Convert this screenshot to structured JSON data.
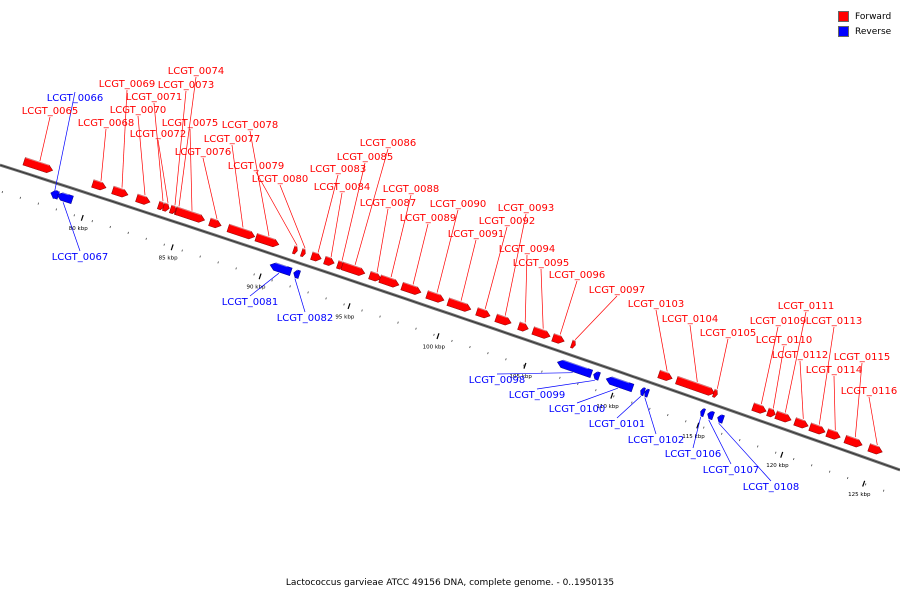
{
  "legend": {
    "forward_label": "Forward",
    "reverse_label": "Reverse",
    "forward_color": "#ff0000",
    "reverse_color": "#0000ff"
  },
  "caption": "Lactococcus garvieae ATCC 49156 DNA, complete genome. - 0..1950135",
  "ticks": [
    "80 kbp",
    "85 kbp",
    "90 kbp",
    "95 kbp",
    "100 kbp",
    "105 kbp",
    "110 kbp",
    "115 kbp",
    "120 kbp",
    "125 kbp"
  ],
  "genes": [
    {
      "name": "LCGT_0065",
      "strand": "forward"
    },
    {
      "name": "LCGT_0066",
      "strand": "reverse"
    },
    {
      "name": "LCGT_0067",
      "strand": "reverse"
    },
    {
      "name": "LCGT_0068",
      "strand": "forward"
    },
    {
      "name": "LCGT_0069",
      "strand": "forward"
    },
    {
      "name": "LCGT_0070",
      "strand": "forward"
    },
    {
      "name": "LCGT_0071",
      "strand": "forward"
    },
    {
      "name": "LCGT_0072",
      "strand": "forward"
    },
    {
      "name": "LCGT_0073",
      "strand": "forward"
    },
    {
      "name": "LCGT_0074",
      "strand": "forward"
    },
    {
      "name": "LCGT_0075",
      "strand": "forward"
    },
    {
      "name": "LCGT_0076",
      "strand": "forward"
    },
    {
      "name": "LCGT_0077",
      "strand": "forward"
    },
    {
      "name": "LCGT_0078",
      "strand": "forward"
    },
    {
      "name": "LCGT_0079",
      "strand": "forward"
    },
    {
      "name": "LCGT_0080",
      "strand": "forward"
    },
    {
      "name": "LCGT_0081",
      "strand": "reverse"
    },
    {
      "name": "LCGT_0082",
      "strand": "reverse"
    },
    {
      "name": "LCGT_0083",
      "strand": "forward"
    },
    {
      "name": "LCGT_0084",
      "strand": "forward"
    },
    {
      "name": "LCGT_0085",
      "strand": "forward"
    },
    {
      "name": "LCGT_0086",
      "strand": "forward"
    },
    {
      "name": "LCGT_0087",
      "strand": "forward"
    },
    {
      "name": "LCGT_0088",
      "strand": "forward"
    },
    {
      "name": "LCGT_0089",
      "strand": "forward"
    },
    {
      "name": "LCGT_0090",
      "strand": "forward"
    },
    {
      "name": "LCGT_0091",
      "strand": "forward"
    },
    {
      "name": "LCGT_0092",
      "strand": "forward"
    },
    {
      "name": "LCGT_0093",
      "strand": "forward"
    },
    {
      "name": "LCGT_0094",
      "strand": "forward"
    },
    {
      "name": "LCGT_0095",
      "strand": "forward"
    },
    {
      "name": "LCGT_0096",
      "strand": "forward"
    },
    {
      "name": "LCGT_0097",
      "strand": "forward"
    },
    {
      "name": "LCGT_0098",
      "strand": "reverse"
    },
    {
      "name": "LCGT_0099",
      "strand": "reverse"
    },
    {
      "name": "LCGT_0100",
      "strand": "reverse"
    },
    {
      "name": "LCGT_0101",
      "strand": "reverse"
    },
    {
      "name": "LCGT_0102",
      "strand": "reverse"
    },
    {
      "name": "LCGT_0103",
      "strand": "forward"
    },
    {
      "name": "LCGT_0104",
      "strand": "forward"
    },
    {
      "name": "LCGT_0105",
      "strand": "forward"
    },
    {
      "name": "LCGT_0106",
      "strand": "reverse"
    },
    {
      "name": "LCGT_0107",
      "strand": "reverse"
    },
    {
      "name": "LCGT_0108",
      "strand": "reverse"
    },
    {
      "name": "LCGT_0109",
      "strand": "forward"
    },
    {
      "name": "LCGT_0110",
      "strand": "forward"
    },
    {
      "name": "LCGT_0111",
      "strand": "forward"
    },
    {
      "name": "LCGT_0112",
      "strand": "forward"
    },
    {
      "name": "LCGT_0113",
      "strand": "forward"
    },
    {
      "name": "LCGT_0114",
      "strand": "forward"
    },
    {
      "name": "LCGT_0115",
      "strand": "forward"
    },
    {
      "name": "LCGT_0116",
      "strand": "forward"
    }
  ]
}
